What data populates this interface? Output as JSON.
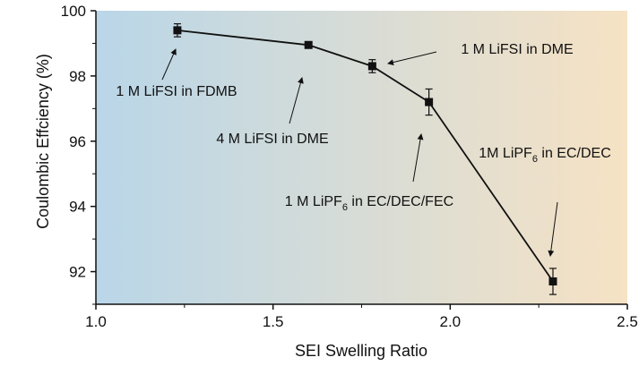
{
  "chart_data": {
    "type": "line",
    "title": "",
    "xlabel": "SEI Swelling Ratio",
    "ylabel": "Coulombic Effciency (%)",
    "xlim": [
      1.0,
      2.5
    ],
    "ylim": [
      91,
      100
    ],
    "x_ticks": [
      "1.0",
      "1.5",
      "2.0",
      "2.5"
    ],
    "y_ticks": [
      "92",
      "94",
      "96",
      "98",
      "100"
    ],
    "grid": false,
    "background_gradient": [
      "#b9d6e8",
      "#f6e2c4"
    ],
    "line_color": "#111111",
    "series": [
      {
        "points": [
          {
            "x": 1.23,
            "y": 99.4,
            "err": 0.2
          },
          {
            "x": 1.6,
            "y": 98.95,
            "err": 0.1
          },
          {
            "x": 1.78,
            "y": 98.3,
            "err": 0.2
          },
          {
            "x": 1.94,
            "y": 97.2,
            "err": 0.4
          },
          {
            "x": 2.29,
            "y": 91.7,
            "err": 0.4
          }
        ]
      }
    ],
    "annotations": [
      {
        "pre": "1 M LiFSI in FDMB",
        "sub": "",
        "post": ""
      },
      {
        "pre": "4 M LiFSI in DME",
        "sub": "",
        "post": ""
      },
      {
        "pre": "1 M LiFSI in DME",
        "sub": "",
        "post": ""
      },
      {
        "pre": "1 M LiPF",
        "sub": "6",
        "post": " in EC/DEC/FEC"
      },
      {
        "pre": "1M LiPF",
        "sub": "6",
        "post": " in EC/DEC"
      }
    ]
  }
}
